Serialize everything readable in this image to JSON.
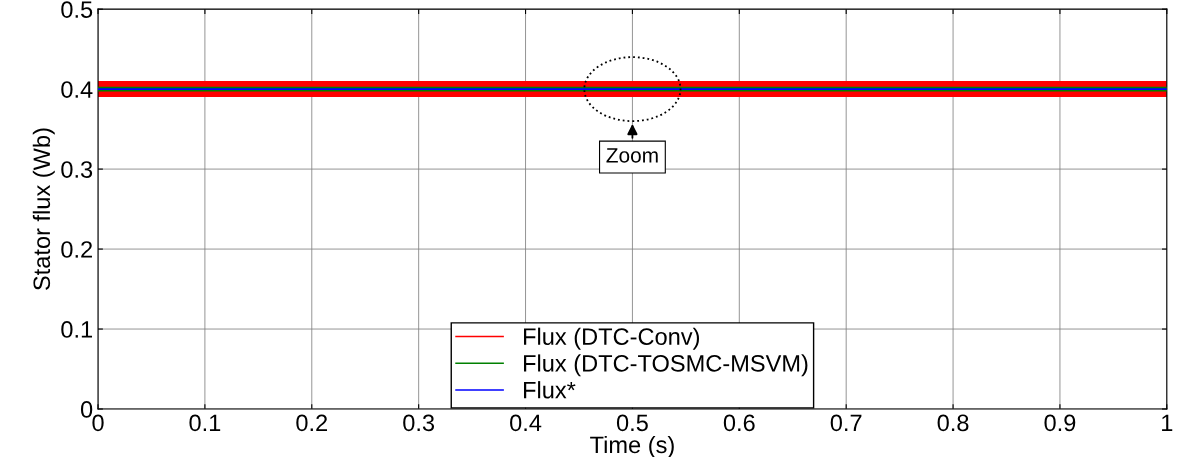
{
  "chart_data": {
    "type": "line",
    "xlabel": "Time (s)",
    "ylabel": "Stator flux (Wb)",
    "x": [
      0,
      1
    ],
    "series": [
      {
        "name": "Flux (DTC-Conv)",
        "color": "#ff0000",
        "values": [
          null,
          null
        ],
        "lower": [
          0.39,
          0.39
        ],
        "upper": [
          0.41,
          0.41
        ]
      },
      {
        "name": "Flux (DTC-TOSMC-MSVM)",
        "color": "#008000",
        "values": [
          null,
          null
        ],
        "lower": [
          0.397,
          0.397
        ],
        "upper": [
          0.403,
          0.403
        ]
      },
      {
        "name": "Flux*",
        "color": "#0000ff",
        "values": [
          0.4,
          0.4
        ]
      }
    ],
    "xlim": [
      0,
      1
    ],
    "ylim": [
      0,
      0.5
    ],
    "xticks": [
      0,
      0.1,
      0.2,
      0.3,
      0.4,
      0.5,
      0.6,
      0.7,
      0.8,
      0.9,
      1
    ],
    "yticks": [
      0,
      0.1,
      0.2,
      0.3,
      0.4,
      0.5
    ],
    "grid": true,
    "legend": "bottom",
    "annotations": [
      "Zoom"
    ]
  }
}
